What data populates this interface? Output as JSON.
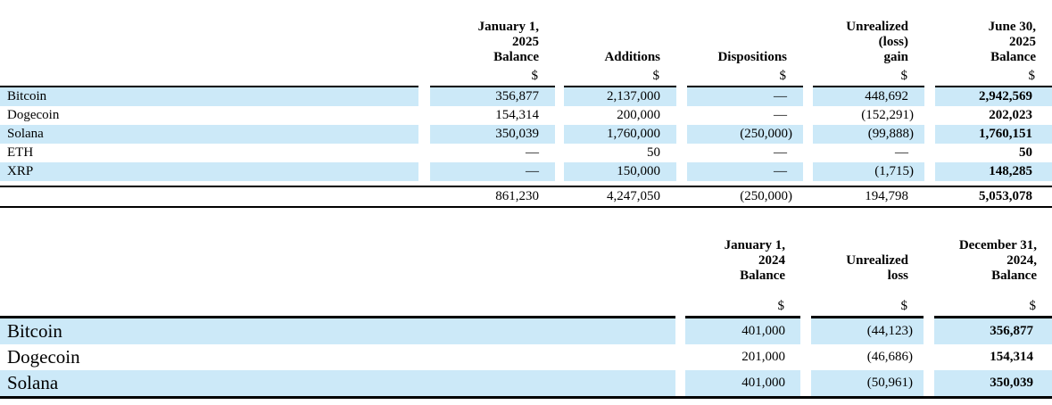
{
  "colors": {
    "row_highlight": "#cce9f8",
    "rule": "#000000",
    "text": "#000000",
    "background": "#ffffff"
  },
  "table1": {
    "columns": [
      {
        "header_lines": [
          "January 1,",
          "2025",
          "Balance"
        ],
        "currency": "$"
      },
      {
        "header_lines": [
          "Additions"
        ],
        "currency": "$"
      },
      {
        "header_lines": [
          "Dispositions"
        ],
        "currency": "$"
      },
      {
        "header_lines": [
          "Unrealized",
          "(loss)",
          "gain"
        ],
        "currency": "$"
      },
      {
        "header_lines": [
          "June 30,",
          "2025",
          "Balance"
        ],
        "currency": "$"
      }
    ],
    "rows": [
      {
        "label": "Bitcoin",
        "values": [
          "356,877",
          "2,137,000",
          "—",
          "448,692",
          "2,942,569"
        ],
        "highlight": true
      },
      {
        "label": "Dogecoin",
        "values": [
          "154,314",
          "200,000",
          "—",
          "(152,291)",
          "202,023"
        ],
        "highlight": false
      },
      {
        "label": "Solana",
        "values": [
          "350,039",
          "1,760,000",
          "(250,000)",
          "(99,888)",
          "1,760,151"
        ],
        "highlight": true
      },
      {
        "label": "ETH",
        "values": [
          "—",
          "50",
          "—",
          "—",
          "50"
        ],
        "highlight": false
      },
      {
        "label": "XRP",
        "values": [
          "—",
          "150,000",
          "—",
          "(1,715)",
          "148,285"
        ],
        "highlight": true
      }
    ],
    "total_row": {
      "label": "",
      "values": [
        "861,230",
        "4,247,050",
        "(250,000)",
        "194,798",
        "5,053,078"
      ]
    }
  },
  "table2": {
    "columns": [
      {
        "header_lines": [
          "January 1,",
          "2024",
          "Balance"
        ],
        "currency": "$"
      },
      {
        "header_lines": [
          "Unrealized",
          "loss"
        ],
        "currency": "$"
      },
      {
        "header_lines": [
          "December 31,",
          "2024,",
          "Balance"
        ],
        "currency": "$"
      }
    ],
    "rows": [
      {
        "label": "Bitcoin",
        "values": [
          "401,000",
          "(44,123)",
          "356,877"
        ],
        "highlight": true
      },
      {
        "label": "Dogecoin",
        "values": [
          "201,000",
          "(46,686)",
          "154,314"
        ],
        "highlight": false
      },
      {
        "label": "Solana",
        "values": [
          "401,000",
          "(50,961)",
          "350,039"
        ],
        "highlight": true
      }
    ]
  }
}
